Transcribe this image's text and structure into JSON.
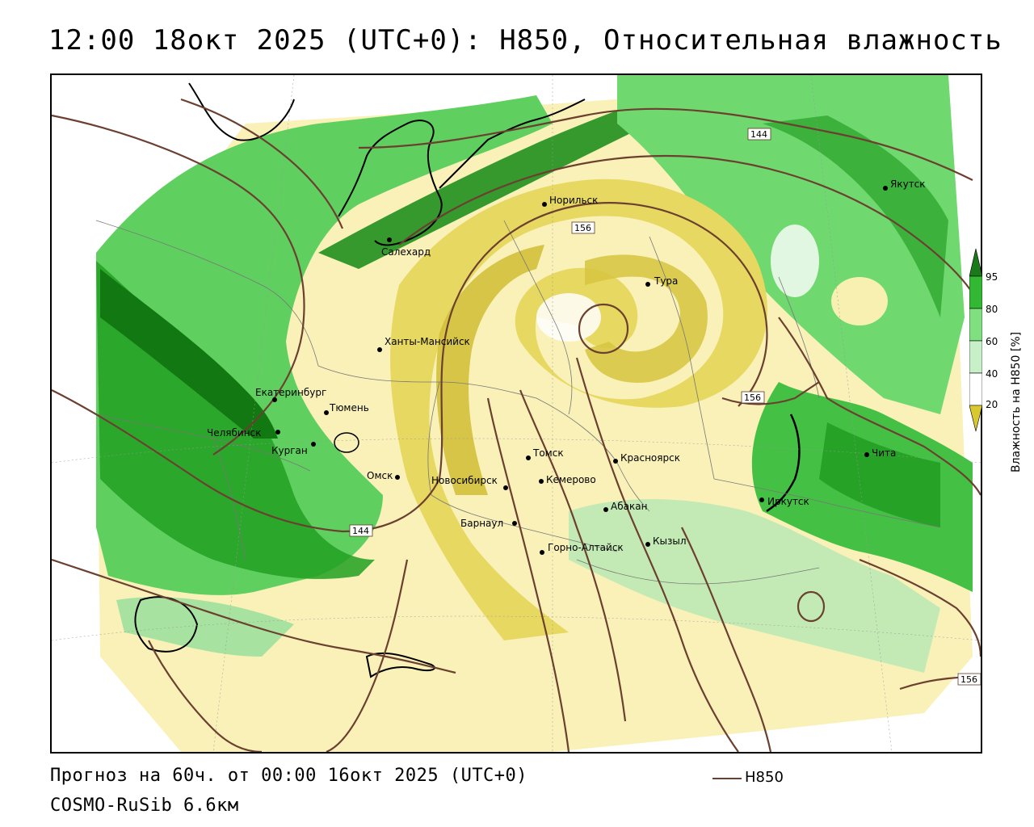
{
  "title": "12:00 18окт 2025 (UTC+0): H850, Относительная влажность",
  "footer": {
    "forecast": "Прогноз на 60ч. от 00:00 16окт 2025 (UTC+0)",
    "model": "COSMO-RuSib 6.6км",
    "legend_label": "H850"
  },
  "colorbar": {
    "title": "Влажность на H850 [%]",
    "ticks": [
      "95",
      "80",
      "60",
      "40",
      "20"
    ],
    "colors": [
      "#1a7a1a",
      "#33b833",
      "#7fe07f",
      "#c8f0c8",
      "#ffffff",
      "#f5eba0",
      "#d9c830"
    ]
  },
  "isolines": {
    "labels": [
      "144",
      "156",
      "156",
      "144",
      "156"
    ],
    "color": "#6b4030"
  },
  "cities": [
    {
      "name": "Салехард"
    },
    {
      "name": "Норильск"
    },
    {
      "name": "Якутск"
    },
    {
      "name": "Тура"
    },
    {
      "name": "Ханты-Мансийск"
    },
    {
      "name": "Екатеринбург"
    },
    {
      "name": "Тюмень"
    },
    {
      "name": "Челябинск"
    },
    {
      "name": "Курган"
    },
    {
      "name": "Омск"
    },
    {
      "name": "Новосибирск"
    },
    {
      "name": "Томск"
    },
    {
      "name": "Кемерово"
    },
    {
      "name": "Красноярск"
    },
    {
      "name": "Барнаул"
    },
    {
      "name": "Абакан"
    },
    {
      "name": "Кызыл"
    },
    {
      "name": "Горно-Алтайск"
    },
    {
      "name": "Иркутск"
    },
    {
      "name": "Чита"
    }
  ]
}
